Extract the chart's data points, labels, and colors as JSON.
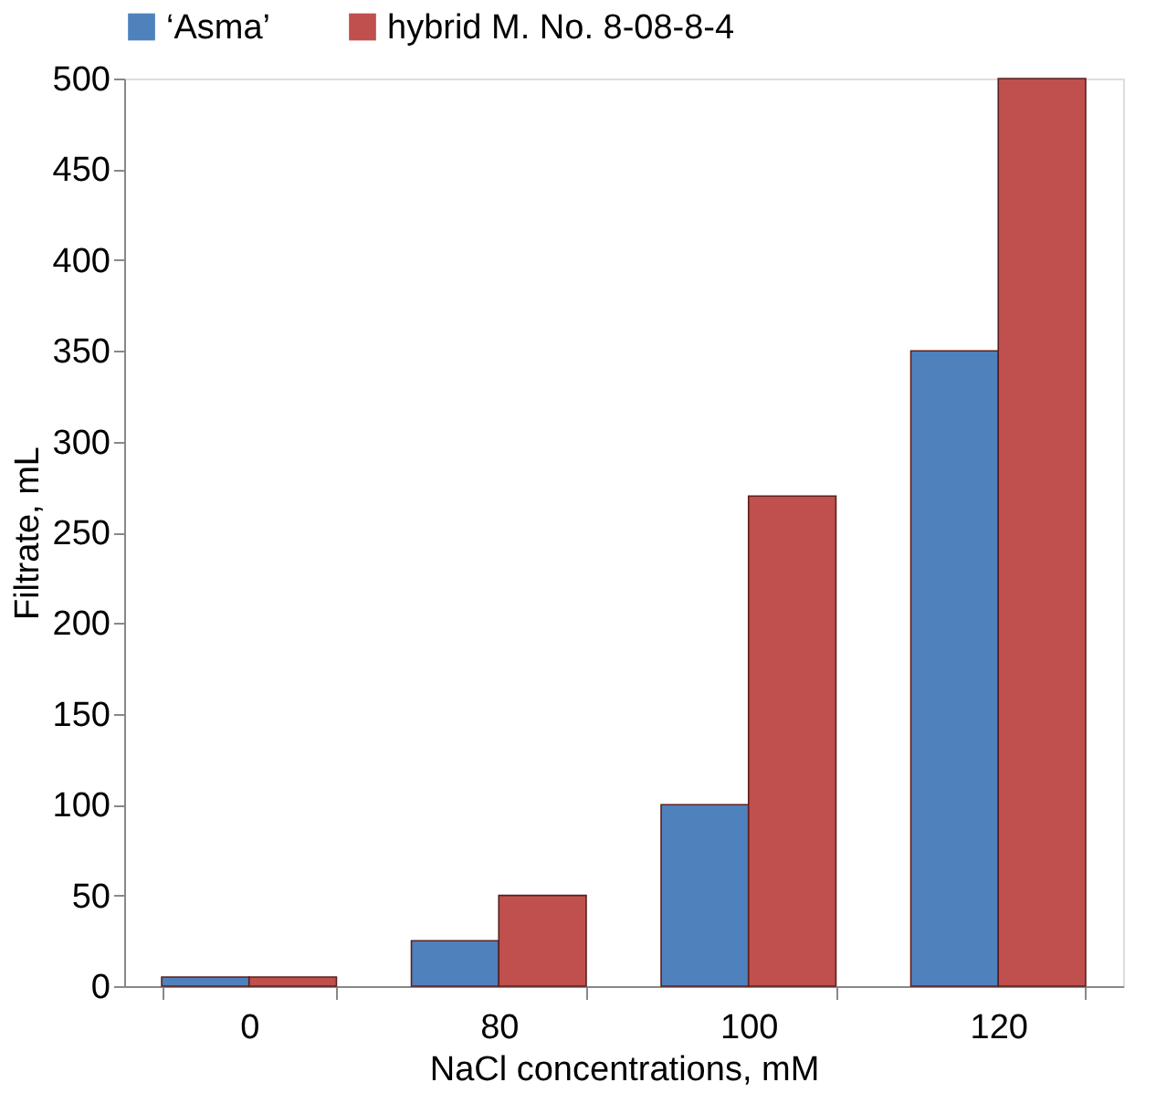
{
  "chart_data": {
    "type": "bar",
    "xlabel": "NaCl concentrations, mM",
    "ylabel": "Filtrate, mL",
    "categories": [
      "0",
      "80",
      "100",
      "120"
    ],
    "series": [
      {
        "name": "‘Asma’",
        "color": "#4f81bd",
        "values": [
          5,
          25,
          100,
          350
        ]
      },
      {
        "name": "hybrid M.  No. 8-08-8-4",
        "color": "#c0504d",
        "values": [
          5,
          50,
          270,
          500
        ]
      }
    ],
    "ylim": [
      0,
      500
    ],
    "yticks": [
      0,
      50,
      100,
      150,
      200,
      250,
      300,
      350,
      400,
      450,
      500
    ],
    "grid": false,
    "legend": "top"
  }
}
